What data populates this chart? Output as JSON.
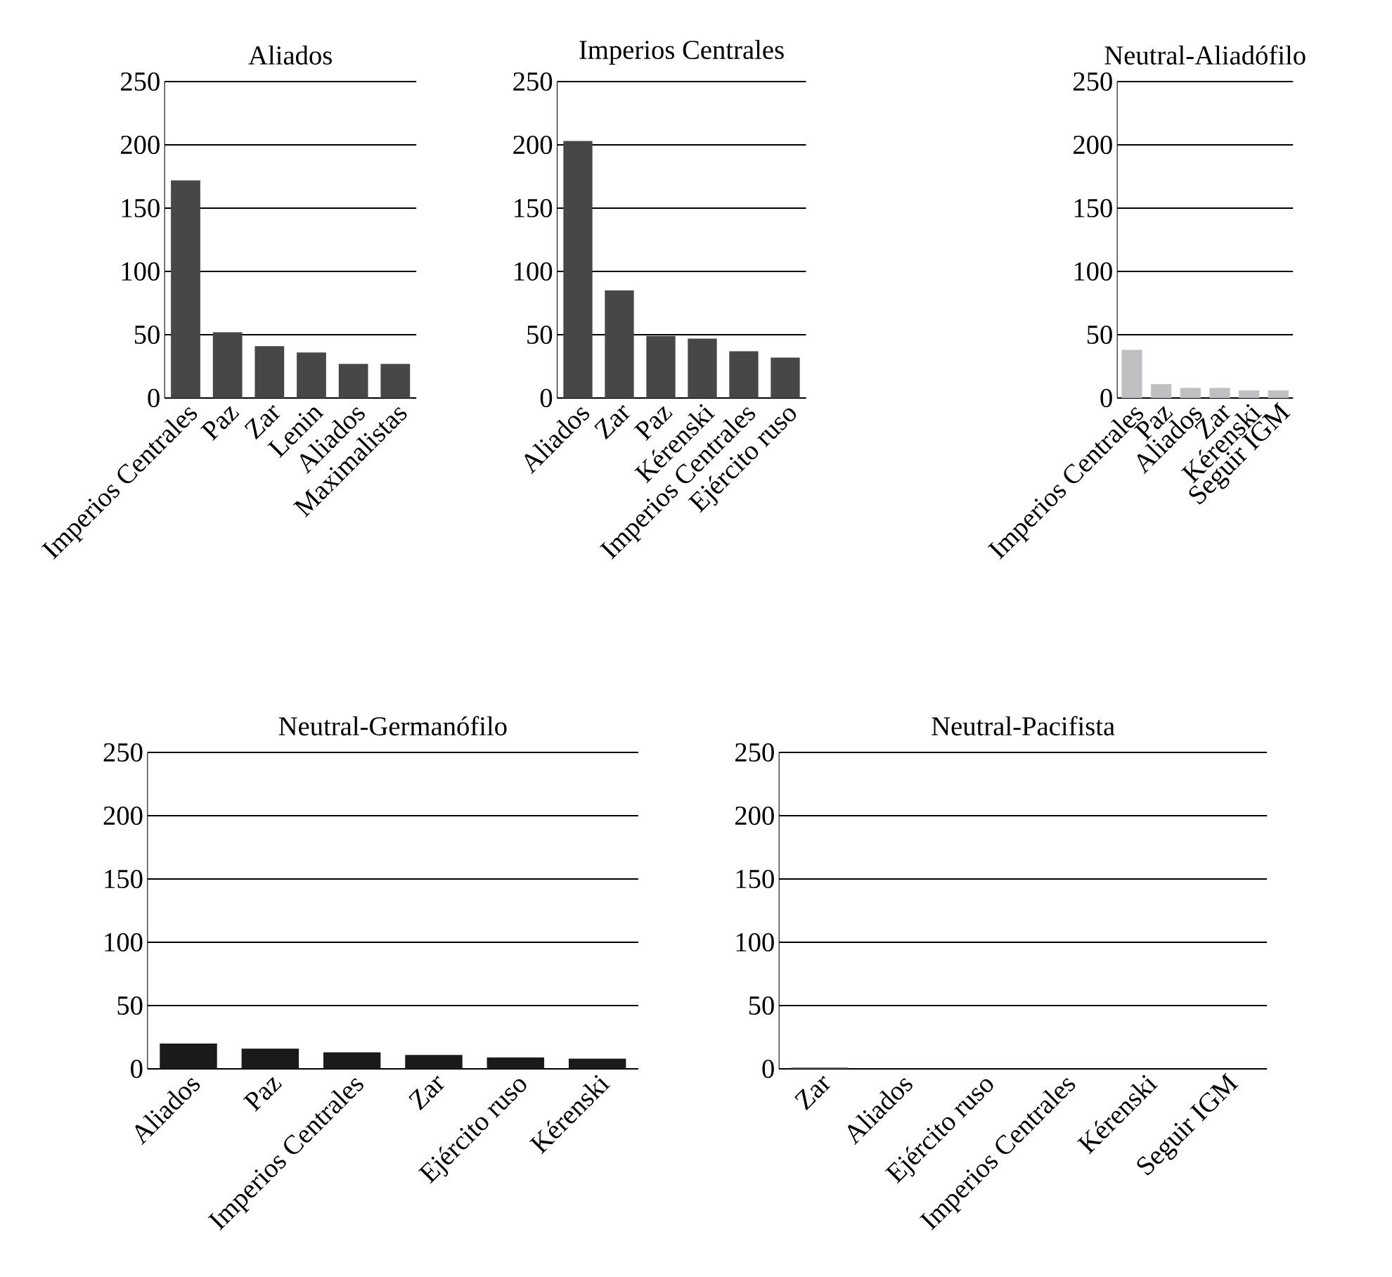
{
  "chart_data": [
    {
      "type": "bar",
      "title": "Aliados",
      "categories": [
        "Imperios Centrales",
        "Paz",
        "Zar",
        "Lenin",
        "Aliados",
        "Maximalistas"
      ],
      "values": [
        172,
        52,
        41,
        36,
        27,
        27
      ],
      "color": "#474747",
      "ylim": [
        0,
        250
      ],
      "yticks": [
        0,
        50,
        100,
        150,
        200,
        250
      ],
      "grid": "y"
    },
    {
      "type": "bar",
      "title": "Imperios Centrales",
      "categories": [
        "Aliados",
        "Zar",
        "Paz",
        "Kérenski",
        "Imperios Centrales",
        "Ejército ruso"
      ],
      "values": [
        203,
        85,
        49,
        47,
        37,
        32
      ],
      "color": "#474747",
      "ylim": [
        0,
        250
      ],
      "yticks": [
        0,
        50,
        100,
        150,
        200,
        250
      ],
      "grid": "y"
    },
    {
      "type": "bar",
      "title": "Neutral-Aliadófilo",
      "categories": [
        "Imperios Centrales",
        "Paz",
        "Aliados",
        "Zar",
        "Kérenski",
        "Seguir IGM"
      ],
      "values": [
        38,
        11,
        8,
        8,
        6,
        6
      ],
      "color": "#c0c0c2",
      "ylim": [
        0,
        250
      ],
      "yticks": [
        0,
        50,
        100,
        150,
        200,
        250
      ],
      "grid": "y"
    },
    {
      "type": "bar",
      "title": "Neutral-Germanófilo",
      "categories": [
        "Aliados",
        "Paz",
        "Imperios Centrales",
        "Zar",
        "Ejército ruso",
        "Kérenski"
      ],
      "values": [
        20,
        16,
        13,
        11,
        9,
        8
      ],
      "color": "#1a1a1a",
      "ylim": [
        0,
        250
      ],
      "yticks": [
        0,
        50,
        100,
        150,
        200,
        250
      ],
      "grid": "y"
    },
    {
      "type": "bar",
      "title": "Neutral-Pacifista",
      "categories": [
        "Zar",
        "Aliados",
        "Ejército ruso",
        "Imperios Centrales",
        "Kérenski",
        "Seguir IGM"
      ],
      "values": [
        1,
        0,
        0,
        0,
        0,
        0
      ],
      "color": "#474747",
      "ylim": [
        0,
        250
      ],
      "yticks": [
        0,
        50,
        100,
        150,
        200,
        250
      ],
      "grid": "y"
    }
  ]
}
